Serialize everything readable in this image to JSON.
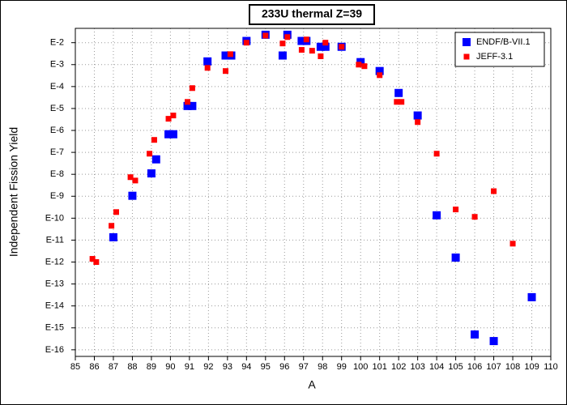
{
  "chart_data": {
    "type": "scatter",
    "title": "233U thermal Z=39",
    "x_label": "A",
    "y_label": "Independent Fission Yield",
    "log_y": true,
    "grid": true,
    "legend": "top-right",
    "xlim": [
      85,
      110
    ],
    "xticks": [
      85,
      86,
      87,
      88,
      89,
      90,
      91,
      92,
      93,
      94,
      95,
      96,
      97,
      98,
      99,
      100,
      101,
      102,
      103,
      104,
      105,
      106,
      107,
      108,
      109,
      110
    ],
    "ylim": [
      5e-17,
      0.045
    ],
    "yticks": [
      {
        "value": 0.01,
        "label": "E-2"
      },
      {
        "value": 0.001,
        "label": "E-3"
      },
      {
        "value": 0.0001,
        "label": "E-4"
      },
      {
        "value": 1e-05,
        "label": "E-5"
      },
      {
        "value": 1e-06,
        "label": "E-6"
      },
      {
        "value": 1e-07,
        "label": "E-7"
      },
      {
        "value": 1e-08,
        "label": "E-8"
      },
      {
        "value": 1e-09,
        "label": "E-9"
      },
      {
        "value": 1e-10,
        "label": "E-10"
      },
      {
        "value": 1e-11,
        "label": "E-11"
      },
      {
        "value": 1e-12,
        "label": "E-12"
      },
      {
        "value": 1e-13,
        "label": "E-13"
      },
      {
        "value": 1e-14,
        "label": "E-14"
      },
      {
        "value": 1e-15,
        "label": "E-15"
      },
      {
        "value": 1e-16,
        "label": "E-16"
      }
    ],
    "series": [
      {
        "name": "ENDF/B-VII.1",
        "color": "#0000ff",
        "x": [
          87,
          88,
          89,
          89.25,
          89.9,
          90.15,
          90.9,
          91.15,
          91.95,
          92.9,
          93.2,
          94,
          95,
          95.9,
          96.15,
          96.9,
          97.15,
          97.9,
          98.15,
          99,
          100,
          101,
          102,
          103,
          104,
          105,
          106,
          107,
          109
        ],
        "values": [
          1.35e-11,
          1.05e-09,
          1.1e-08,
          4.8e-08,
          6.7e-07,
          6.7e-07,
          1.3e-05,
          1.3e-05,
          0.0014,
          0.0026,
          0.0026,
          0.012,
          0.023,
          0.0026,
          0.023,
          0.012,
          0.012,
          0.0065,
          0.0065,
          0.0065,
          0.0013,
          0.00051,
          5.1e-05,
          4.8e-06,
          1.35e-10,
          1.6e-12,
          5e-16,
          2.5e-16,
          2.5e-14
        ]
      },
      {
        "name": "JEFF-3.1",
        "color": "#ff0000",
        "x": [
          85.9,
          86.1,
          86.9,
          87.15,
          87.9,
          88.15,
          88.9,
          89.15,
          89.9,
          90.15,
          90.9,
          91.15,
          91.95,
          92.9,
          93.15,
          94,
          95,
          95.9,
          96.15,
          96.9,
          97.15,
          97.45,
          97.9,
          98.15,
          99,
          99.9,
          100.2,
          101,
          101.9,
          102.15,
          103,
          104,
          105,
          106,
          107,
          108
        ],
        "values": [
          1.4e-12,
          1e-12,
          4.5e-11,
          1.9e-10,
          7.4e-09,
          5.2e-09,
          8.7e-08,
          3.7e-07,
          3.4e-06,
          4.8e-06,
          2e-05,
          8.5e-05,
          0.00071,
          0.00051,
          0.003,
          0.01,
          0.021,
          0.0092,
          0.018,
          0.0047,
          0.014,
          0.0043,
          0.0024,
          0.01,
          0.0065,
          0.001,
          0.00085,
          0.00033,
          2e-05,
          2e-05,
          2.4e-06,
          8.7e-08,
          2.5e-10,
          1.15e-10,
          1.7e-09,
          6.9e-12
        ]
      }
    ]
  }
}
